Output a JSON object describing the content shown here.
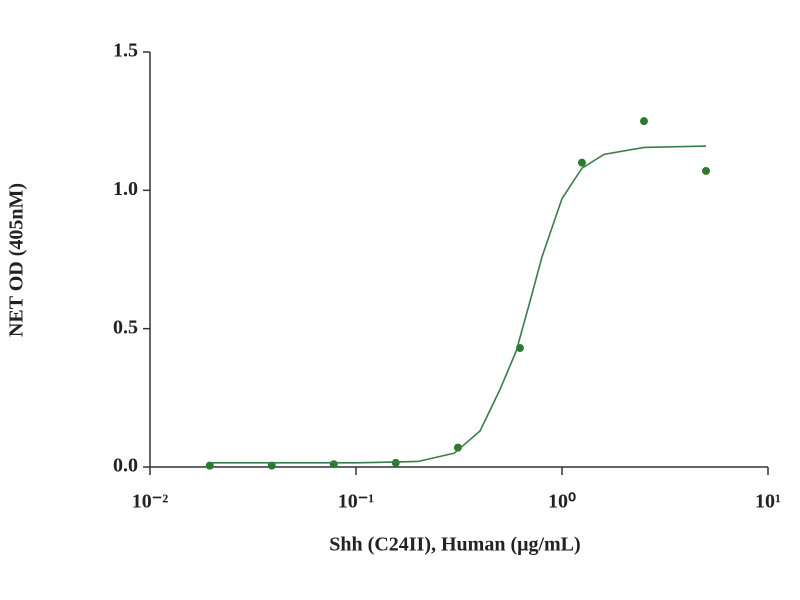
{
  "chart_data": {
    "type": "scatter",
    "xlabel": "Shh (C24II), Human (μg/mL)",
    "ylabel": "NET OD (405nM)",
    "xscale": "log",
    "xlim": [
      0.01,
      10
    ],
    "xticks": [
      {
        "value": 0.01,
        "label": "10⁻²"
      },
      {
        "value": 0.1,
        "label": "10⁻¹"
      },
      {
        "value": 1,
        "label": "10⁰"
      },
      {
        "value": 10,
        "label": "10¹"
      }
    ],
    "ylim": [
      0,
      1.5
    ],
    "yticks": [
      {
        "value": 0,
        "label": "0.0"
      },
      0.5,
      {
        "value": 1,
        "label": "1.0"
      },
      1.5
    ],
    "series": [
      {
        "mode": "markers",
        "color": "#2b7a2e",
        "x": [
          0.0195,
          0.039,
          0.078,
          0.156,
          0.3125,
          0.625,
          1.25,
          2.5,
          5
        ],
        "values": [
          0.005,
          0.005,
          0.01,
          0.015,
          0.07,
          0.43,
          1.1,
          1.25,
          1.07
        ]
      },
      {
        "mode": "line",
        "color": "#3a7d4c",
        "x": [
          0.02,
          0.1,
          0.2,
          0.3,
          0.4,
          0.5,
          0.6,
          0.7,
          0.8,
          1.0,
          1.25,
          1.6,
          2.5,
          5
        ],
        "values": [
          0.015,
          0.015,
          0.02,
          0.05,
          0.13,
          0.28,
          0.42,
          0.6,
          0.76,
          0.97,
          1.08,
          1.13,
          1.155,
          1.16
        ]
      }
    ]
  }
}
